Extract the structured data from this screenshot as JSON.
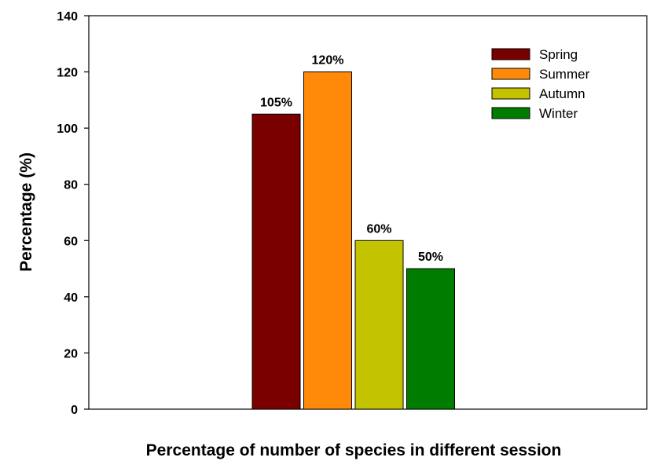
{
  "chart_data": {
    "type": "bar",
    "xlabel": "Percentage of number of species in different session",
    "ylabel": "Percentage (%)",
    "ylim": [
      0,
      140
    ],
    "yticks": [
      0,
      20,
      40,
      60,
      80,
      100,
      120,
      140
    ],
    "grid": false,
    "legend_position": "top-right",
    "series": [
      {
        "name": "Spring",
        "value": 105,
        "label": "105%",
        "color": "#7a0000"
      },
      {
        "name": "Summer",
        "value": 120,
        "label": "120%",
        "color": "#ff8a0a"
      },
      {
        "name": "Autumn",
        "value": 60,
        "label": "60%",
        "color": "#c3c300"
      },
      {
        "name": "Winter",
        "value": 50,
        "label": "50%",
        "color": "#007d00"
      }
    ]
  }
}
